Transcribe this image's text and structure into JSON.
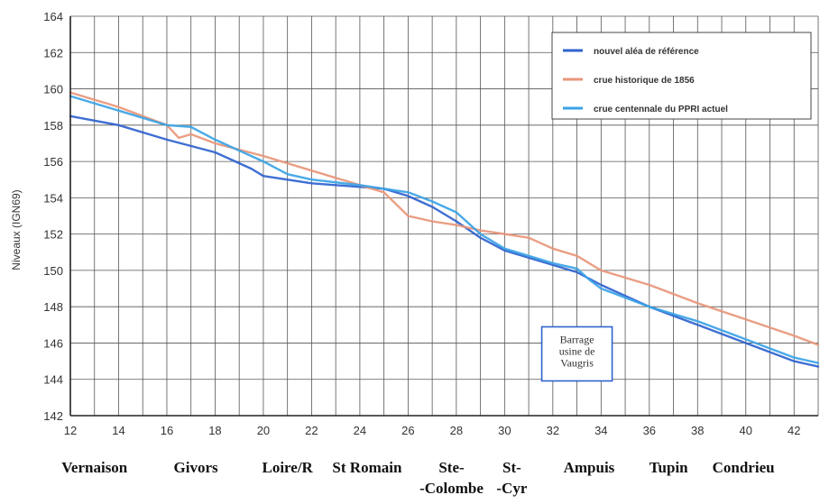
{
  "chart_data": {
    "type": "line",
    "title": "",
    "xlabel": "",
    "ylabel": "Niveaux (IGN69)",
    "xlim": [
      12,
      43
    ],
    "ylim": [
      142,
      164
    ],
    "xticks": [
      12,
      14,
      16,
      18,
      20,
      22,
      24,
      26,
      28,
      30,
      32,
      34,
      36,
      38,
      40,
      42
    ],
    "yticks": [
      142,
      144,
      146,
      148,
      150,
      152,
      154,
      156,
      158,
      160,
      162,
      164
    ],
    "grid": true,
    "legend_position": "top-right",
    "series": [
      {
        "name": "nouvel aléa de référence",
        "color": "#2f63cf",
        "x": [
          12,
          14,
          16,
          18,
          19.5,
          20,
          22,
          24,
          25,
          26,
          27,
          28,
          29,
          30,
          32,
          33,
          34,
          36,
          38,
          40,
          42,
          43
        ],
        "y": [
          158.5,
          158.0,
          157.2,
          156.5,
          155.6,
          155.2,
          154.8,
          154.6,
          154.5,
          154.1,
          153.5,
          152.7,
          151.8,
          151.1,
          150.3,
          149.9,
          149.2,
          148.0,
          147.0,
          146.0,
          145.0,
          144.7
        ]
      },
      {
        "name": "crue historique de 1856",
        "color": "#e8967a",
        "x": [
          12,
          14,
          16,
          16.5,
          17,
          18,
          20,
          22,
          24,
          25,
          26,
          27,
          28,
          29,
          30,
          31,
          32,
          33,
          34,
          36,
          38,
          40,
          42,
          43
        ],
        "y": [
          159.8,
          159.0,
          158.0,
          157.3,
          157.5,
          157.0,
          156.3,
          155.5,
          154.7,
          154.3,
          153.0,
          152.7,
          152.5,
          152.2,
          152.0,
          151.8,
          151.2,
          150.8,
          150.0,
          149.2,
          148.2,
          147.3,
          146.4,
          145.9
        ]
      },
      {
        "name": "crue centennale du PPRI actuel",
        "color": "#3aa3e6",
        "x": [
          12,
          14,
          16,
          17,
          18,
          20,
          21,
          22,
          24,
          25,
          26,
          27,
          28,
          29,
          30,
          32,
          33,
          33.5,
          34,
          36,
          38,
          40,
          42,
          43
        ],
        "y": [
          159.6,
          158.8,
          158.0,
          157.9,
          157.2,
          156.0,
          155.3,
          155.0,
          154.7,
          154.5,
          154.3,
          153.8,
          153.2,
          152.0,
          151.2,
          150.4,
          150.1,
          149.5,
          149.0,
          148.0,
          147.2,
          146.2,
          145.2,
          144.9
        ]
      }
    ],
    "annotations": [
      {
        "lines": [
          "Barrage",
          "usine de",
          "Vaugris"
        ],
        "x": 33,
        "y": 145.7
      }
    ],
    "places": [
      {
        "lines": [
          "Vernaison"
        ],
        "x": 13
      },
      {
        "lines": [
          "Givors"
        ],
        "x": 17.2
      },
      {
        "lines": [
          "Loire/R"
        ],
        "x": 21
      },
      {
        "lines": [
          "St Romain"
        ],
        "x": 24.3
      },
      {
        "lines": [
          "Ste-",
          "-Colombe"
        ],
        "x": 27.8
      },
      {
        "lines": [
          "St-",
          "-Cyr"
        ],
        "x": 30.3
      },
      {
        "lines": [
          "Ampuis"
        ],
        "x": 33.5
      },
      {
        "lines": [
          "Tupin"
        ],
        "x": 36.8
      },
      {
        "lines": [
          "Condrieu"
        ],
        "x": 39.9
      }
    ]
  }
}
